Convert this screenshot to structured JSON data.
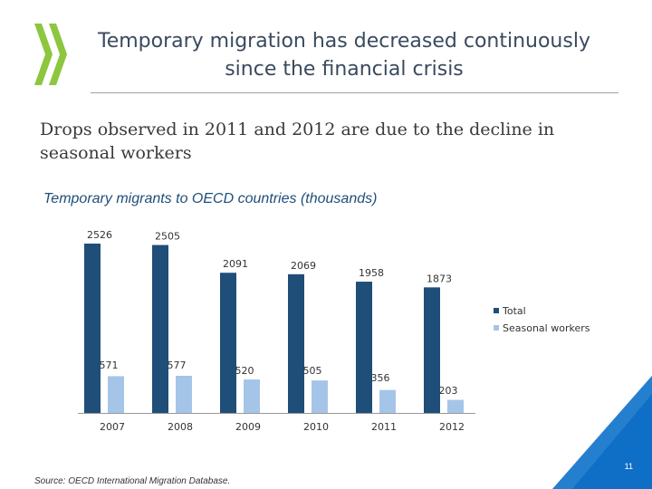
{
  "slide": {
    "title_line1": "Temporary migration has decreased continuously",
    "title_line2": "since the financial crisis",
    "subtitle": "Drops observed in 2011 and 2012 are due to the decline in seasonal workers",
    "source": "Source: OECD International Migration Database.",
    "page_number": "11"
  },
  "colors": {
    "total": "#1f4e79",
    "seasonal": "#a5c5e8",
    "accent": "#0f6fc6",
    "logo_green": "#8dc63f"
  },
  "chart_data": {
    "type": "bar",
    "title": "Temporary migrants to OECD countries (thousands)",
    "categories": [
      "2007",
      "2008",
      "2009",
      "2010",
      "2011",
      "2012"
    ],
    "series": [
      {
        "name": "Total",
        "values": [
          2526,
          2505,
          2091,
          2069,
          1958,
          1873
        ]
      },
      {
        "name": "Seasonal workers",
        "values": [
          571,
          577,
          520,
          505,
          356,
          203
        ]
      }
    ],
    "xlabel": "",
    "ylabel": "",
    "axis_break": true,
    "legend_position": "right"
  }
}
